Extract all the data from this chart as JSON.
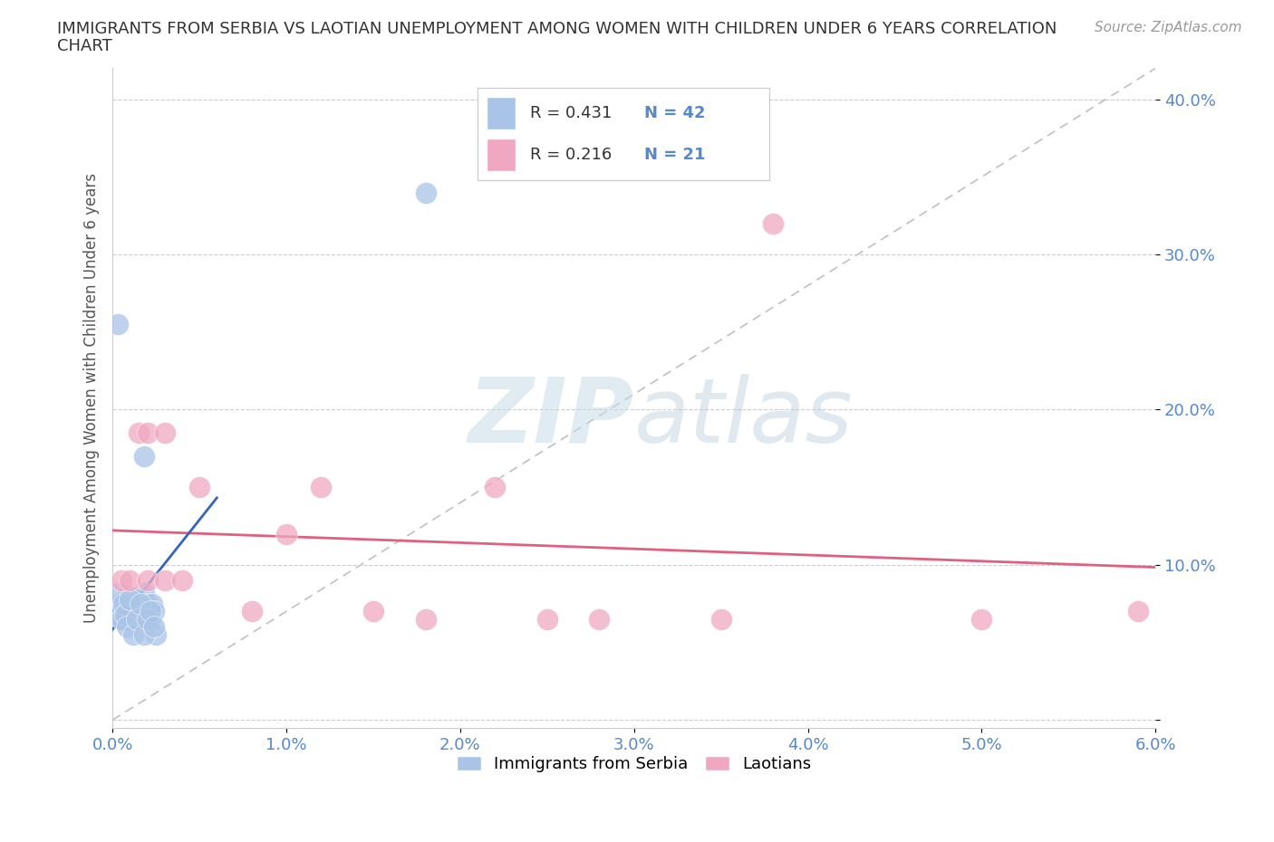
{
  "title_line1": "IMMIGRANTS FROM SERBIA VS LAOTIAN UNEMPLOYMENT AMONG WOMEN WITH CHILDREN UNDER 6 YEARS CORRELATION",
  "title_line2": "CHART",
  "source": "Source: ZipAtlas.com",
  "ylabel": "Unemployment Among Women with Children Under 6 years",
  "xlim": [
    0.0,
    0.06
  ],
  "ylim": [
    -0.005,
    0.42
  ],
  "serbia_R": 0.431,
  "serbia_N": 42,
  "laotian_R": 0.216,
  "laotian_N": 21,
  "serbia_color": "#aac4e8",
  "laotian_color": "#f0a8c0",
  "serbia_line_color": "#3366bb",
  "laotian_line_color": "#e06080",
  "ref_line_color": "#c0c0c0",
  "background_color": "#ffffff",
  "tick_color": "#5588cc",
  "text_color": "#333333",
  "watermark_color": "#c8dce8",
  "serbia_x": [
    0.0002,
    0.0003,
    0.0004,
    0.0005,
    0.0006,
    0.0007,
    0.0008,
    0.0009,
    0.001,
    0.001,
    0.0011,
    0.0012,
    0.0013,
    0.0014,
    0.0015,
    0.0016,
    0.0017,
    0.0018,
    0.0019,
    0.002,
    0.002,
    0.0021,
    0.0022,
    0.0023,
    0.0024,
    0.0025,
    0.0003,
    0.0005,
    0.0006,
    0.0007,
    0.0008,
    0.001,
    0.0012,
    0.0014,
    0.0016,
    0.0018,
    0.002,
    0.0022,
    0.0024,
    0.0018,
    0.0003,
    0.018
  ],
  "serbia_y": [
    0.068,
    0.072,
    0.075,
    0.07,
    0.065,
    0.075,
    0.07,
    0.08,
    0.065,
    0.072,
    0.075,
    0.068,
    0.078,
    0.065,
    0.072,
    0.065,
    0.068,
    0.082,
    0.07,
    0.075,
    0.065,
    0.072,
    0.065,
    0.075,
    0.07,
    0.055,
    0.082,
    0.065,
    0.075,
    0.068,
    0.06,
    0.078,
    0.055,
    0.065,
    0.075,
    0.055,
    0.065,
    0.07,
    0.06,
    0.17,
    0.255,
    0.34
  ],
  "laotian_x": [
    0.0005,
    0.001,
    0.0015,
    0.002,
    0.002,
    0.003,
    0.003,
    0.004,
    0.005,
    0.008,
    0.01,
    0.012,
    0.015,
    0.018,
    0.022,
    0.025,
    0.028,
    0.035,
    0.038,
    0.05,
    0.059
  ],
  "laotian_y": [
    0.09,
    0.09,
    0.185,
    0.185,
    0.09,
    0.09,
    0.185,
    0.09,
    0.15,
    0.07,
    0.12,
    0.15,
    0.07,
    0.065,
    0.15,
    0.065,
    0.065,
    0.065,
    0.32,
    0.065,
    0.07
  ]
}
